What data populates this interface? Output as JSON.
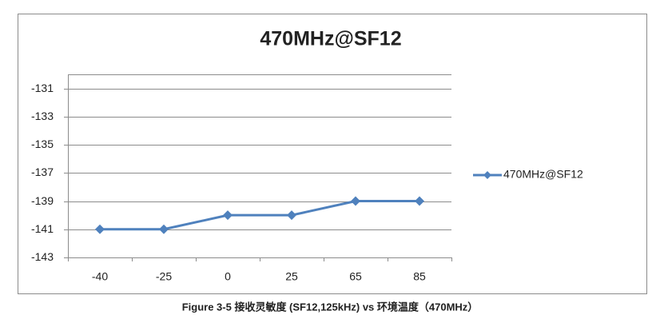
{
  "chart_data": {
    "type": "line",
    "title": "470MHz@SF12",
    "categories": [
      "-40",
      "-25",
      "0",
      "25",
      "65",
      "85"
    ],
    "series": [
      {
        "name": "470MHz@SF12",
        "color": "#4f81bd",
        "values": [
          -141,
          -141,
          -140,
          -140,
          -139,
          -139
        ]
      }
    ],
    "ylim": [
      -143,
      -130
    ],
    "yticks": [
      -143,
      -141,
      -139,
      -137,
      -135,
      -133,
      -131
    ],
    "grid": true,
    "legend": "right"
  },
  "caption": "Figure 3-5 接收灵敏度 (SF12,125kHz) vs 环境温度（470MHz）"
}
